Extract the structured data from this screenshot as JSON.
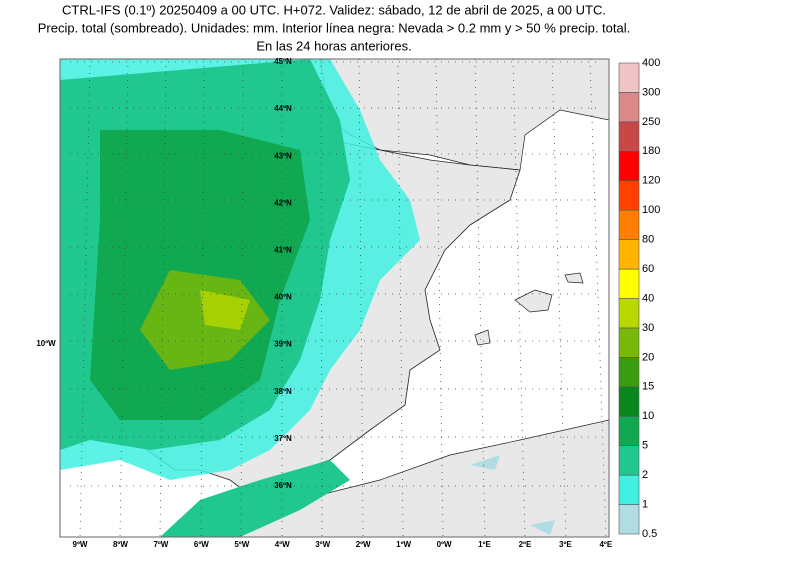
{
  "header": {
    "lines": [
      "CTRL-IFS (0.1º) 20250409 a 00 UTC. H+072. Validez: sábado, 12 de abril de 2025, a 00 UTC.",
      "Precip. total (sombreado). Unidades: mm. Interior línea negra: Nevada > 0.2 mm y > 50 % precip. total.",
      "En las 24 horas anteriores."
    ]
  },
  "map": {
    "lat_labels": [
      "45ºN",
      "44ºN",
      "43ºN",
      "42ºN",
      "41ºN",
      "40ºN",
      "39ºN",
      "38ºN",
      "37ºN",
      "36ºN"
    ],
    "west_label": "10ºW",
    "lon_labels": [
      "9ºW",
      "8ºW",
      "7ºW",
      "6ºW",
      "5ºW",
      "4ºW",
      "3ºW",
      "2ºW",
      "1ºW",
      "0ºW",
      "1ºE",
      "2ºE",
      "3ºE",
      "4ºE"
    ]
  },
  "colorbar": {
    "levels": [
      0.5,
      1,
      2,
      5,
      10,
      15,
      20,
      30,
      40,
      60,
      80,
      100,
      120,
      180,
      250,
      300,
      400
    ],
    "colors": [
      "#b0dde4",
      "#40f0e0",
      "#20c890",
      "#10a850",
      "#08881c",
      "#3c9c10",
      "#78b808",
      "#b8d800",
      "#ffff00",
      "#ffb400",
      "#ff8000",
      "#ff4000",
      "#ff0000",
      "#c84848",
      "#dc8888",
      "#f0c4c4"
    ]
  }
}
